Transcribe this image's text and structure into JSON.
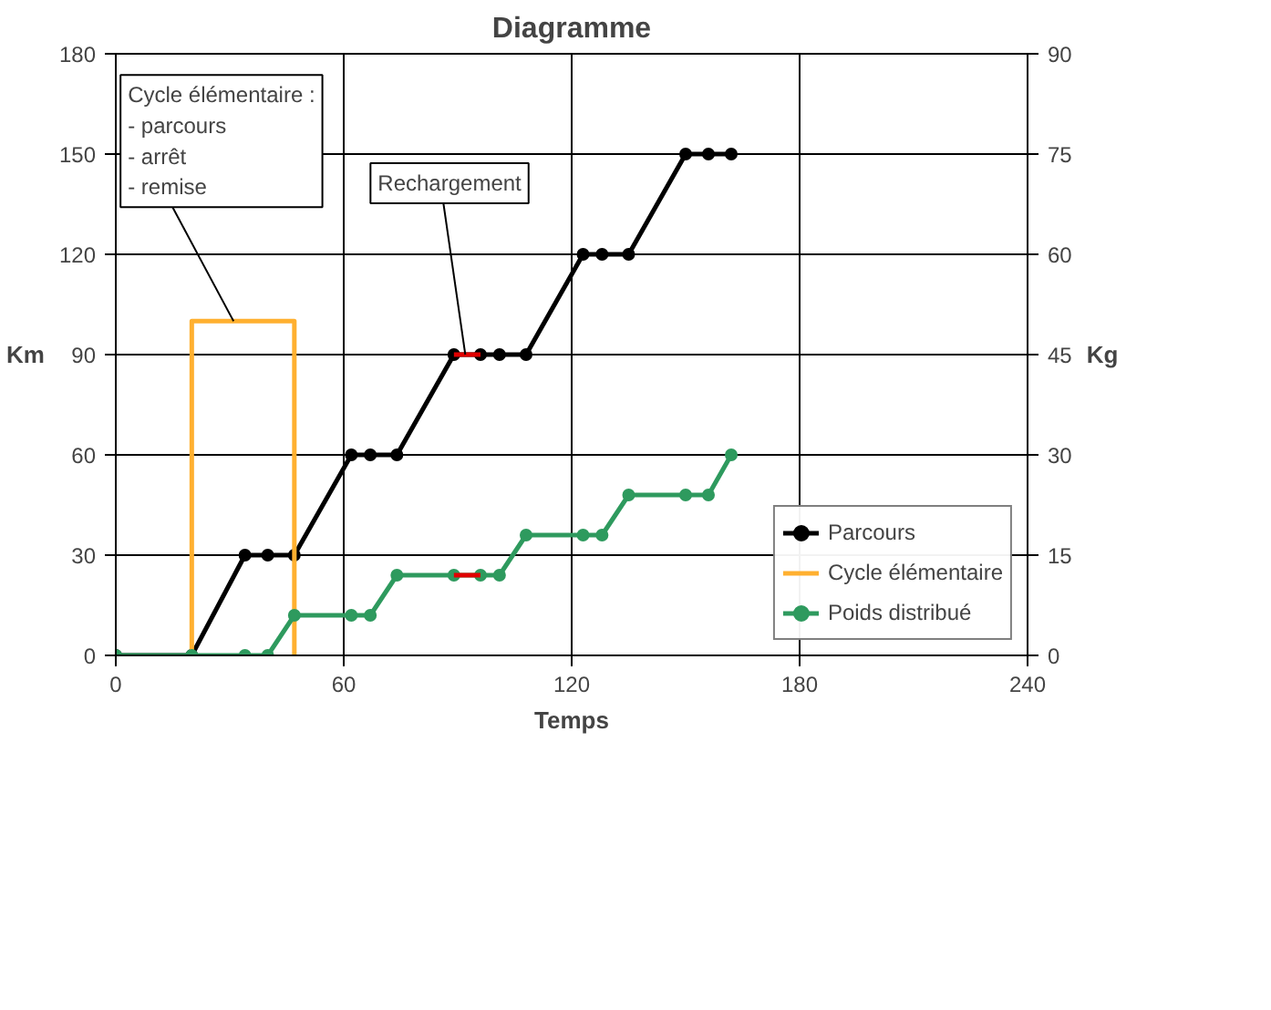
{
  "chart_data": {
    "type": "line",
    "title": "Diagramme",
    "xlabel": "Temps",
    "ylabel": "Km",
    "y2label": "Kg",
    "xlim": [
      0,
      240
    ],
    "xticks": [
      0,
      60,
      120,
      180,
      240
    ],
    "ylim": [
      0,
      180
    ],
    "yticks": [
      0,
      30,
      60,
      90,
      120,
      150,
      180
    ],
    "y2lim": [
      0,
      90
    ],
    "y2ticks": [
      0,
      15,
      30,
      45,
      60,
      75,
      90
    ],
    "grid": true,
    "legend": "bottom right",
    "series": [
      {
        "name": "Parcours",
        "color": "#000000",
        "marker": "circle",
        "x": [
          0,
          20,
          34,
          40,
          47,
          62,
          67,
          74,
          89,
          96,
          101,
          108,
          123,
          128,
          135,
          150,
          156,
          162
        ],
        "values": [
          0,
          0,
          30,
          30,
          30,
          60,
          60,
          60,
          90,
          90,
          90,
          90,
          120,
          120,
          120,
          150,
          150,
          150
        ]
      },
      {
        "name": "Cycle élémentaire",
        "color": "#ffb030",
        "marker": "none",
        "x": [
          20,
          20,
          47,
          47
        ],
        "values": [
          0,
          100,
          100,
          0
        ]
      },
      {
        "name": "Poids distribué",
        "color": "#2e9a5e",
        "marker": "circle",
        "axis": "y2",
        "x": [
          0,
          20,
          34,
          40,
          47,
          62,
          67,
          74,
          89,
          96,
          101,
          108,
          123,
          128,
          135,
          150,
          156,
          162
        ],
        "values": [
          0,
          0,
          0,
          0,
          6,
          6,
          6,
          12,
          12,
          12,
          12,
          18,
          18,
          18,
          24,
          24,
          24,
          30
        ]
      },
      {
        "color": "#e00000",
        "marker": "none",
        "x": [
          89,
          96
        ],
        "values": [
          90,
          90
        ]
      },
      {
        "color": "#e00000",
        "marker": "none",
        "axis": "y2",
        "x": [
          89,
          96
        ],
        "values": [
          12,
          12
        ]
      }
    ],
    "annotations": [
      {
        "text": "Cycle élémentaire :\n- parcours\n- arrêt\n- remise",
        "x": 31,
        "y": 100
      },
      {
        "text": "Rechargement",
        "x": 92,
        "y": 90
      }
    ]
  }
}
